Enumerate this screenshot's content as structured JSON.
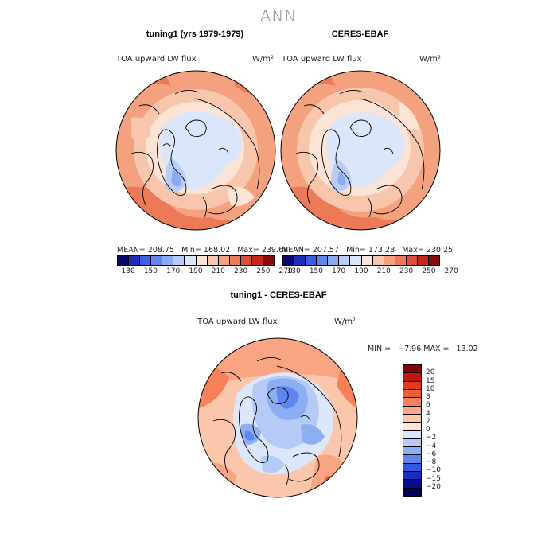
{
  "title": "ANN",
  "panels": [
    {
      "title": "tuning1 (yrs 1979-1979)",
      "variable": "TOA upward LW flux",
      "units": "W/m²",
      "stats": "MEAN= 208.75   Min= 168.02   Max= 239.68"
    },
    {
      "title": "CERES-EBAF",
      "variable": "TOA upward LW flux",
      "units": "W/m²",
      "stats": "MEAN= 207.57   Min= 173.28   Max= 230.25"
    },
    {
      "title": "tuning1 - CERES-EBAF",
      "variable": "TOA upward LW flux",
      "units": "W/m²",
      "stats": "MIN =   −7.96 MAX =   13.02"
    }
  ],
  "colorbar_top": {
    "ticks": [
      "130",
      "150",
      "170",
      "190",
      "210",
      "230",
      "250",
      "270"
    ],
    "colors": [
      "#08086b",
      "#1a30b8",
      "#3b5fe0",
      "#5f86ee",
      "#8aaaf3",
      "#b8ccf7",
      "#dbe6fb",
      "#fbe4d6",
      "#f8c6ac",
      "#f4a17f",
      "#ec7a58",
      "#dd4f34",
      "#c2281b",
      "#8b0a0a"
    ]
  },
  "colorbar_diff": {
    "ticks": [
      "20",
      "15",
      "10",
      "8",
      "6",
      "4",
      "2",
      "0",
      "−2",
      "−4",
      "−6",
      "−8",
      "−10",
      "−15",
      "−20"
    ],
    "colors": [
      "#8b0000",
      "#c1140e",
      "#e23a1c",
      "#f25c33",
      "#f68158",
      "#f9a482",
      "#fbc7ac",
      "#fde6d8",
      "#dde7fb",
      "#b5caf7",
      "#8eaef2",
      "#5f86ee",
      "#3358e0",
      "#1a2fc0",
      "#0a0a90",
      "#00005a"
    ]
  },
  "chart_data": [
    {
      "type": "heatmap",
      "title": "tuning1 (yrs 1979-1979)",
      "variable": "TOA upward LW flux",
      "units": "W/m2",
      "mean": 208.75,
      "min": 168.02,
      "max": 239.68,
      "contour_levels": [
        130,
        140,
        150,
        160,
        170,
        180,
        190,
        200,
        210,
        220,
        230,
        240,
        250,
        260,
        270
      ]
    },
    {
      "type": "heatmap",
      "title": "CERES-EBAF",
      "variable": "TOA upward LW flux",
      "units": "W/m2",
      "mean": 207.57,
      "min": 173.28,
      "max": 230.25,
      "contour_levels": [
        130,
        140,
        150,
        160,
        170,
        180,
        190,
        200,
        210,
        220,
        230,
        240,
        250,
        260,
        270
      ]
    },
    {
      "type": "heatmap",
      "title": "tuning1 - CERES-EBAF",
      "variable": "TOA upward LW flux",
      "units": "W/m2",
      "min": -7.96,
      "max": 13.02,
      "contour_levels": [
        -20,
        -15,
        -10,
        -8,
        -6,
        -4,
        -2,
        0,
        2,
        4,
        6,
        8,
        10,
        15,
        20
      ]
    }
  ]
}
